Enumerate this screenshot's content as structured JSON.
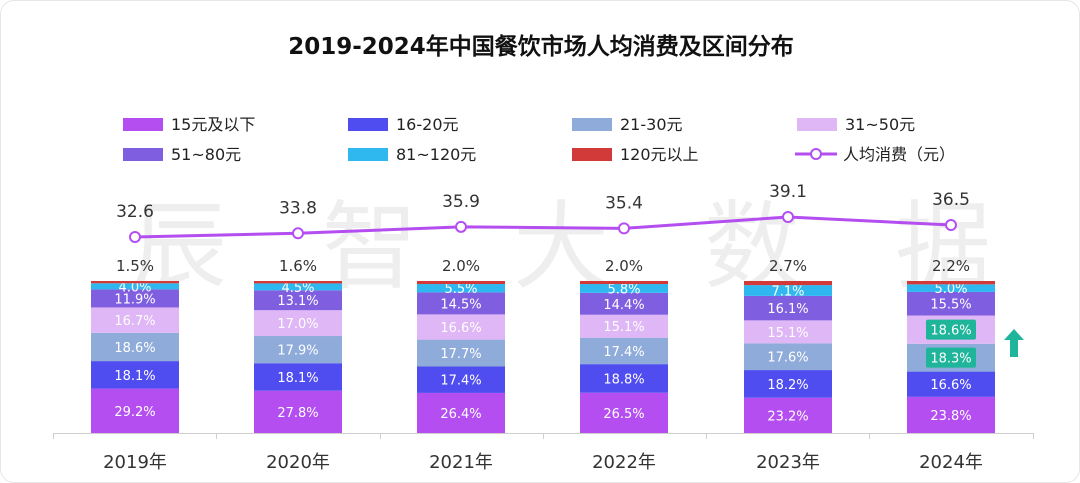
{
  "chart_data": {
    "type": "bar",
    "stacked": true,
    "title": "2019-2024年中国餐饮市场人均消费及区间分布",
    "categories": [
      "2019年",
      "2020年",
      "2021年",
      "2022年",
      "2023年",
      "2024年"
    ],
    "series": [
      {
        "name": "15元及以下",
        "color": "#b44ef0",
        "values": [
          29.2,
          27.8,
          26.4,
          26.5,
          23.2,
          23.8
        ],
        "labels": [
          "29.2%",
          "27.8%",
          "26.4%",
          "26.5%",
          "23.2%",
          "23.8%"
        ]
      },
      {
        "name": "16-20元",
        "color": "#4f4cf0",
        "values": [
          18.1,
          18.1,
          17.4,
          18.8,
          18.2,
          16.6
        ],
        "labels": [
          "18.1%",
          "18.1%",
          "17.4%",
          "18.8%",
          "18.2%",
          "16.6%"
        ]
      },
      {
        "name": "21-30元",
        "color": "#8fabda",
        "values": [
          18.6,
          17.9,
          17.7,
          17.4,
          17.6,
          18.3
        ],
        "labels": [
          "18.6%",
          "17.9%",
          "17.7%",
          "17.4%",
          "17.6%",
          "18.3%"
        ]
      },
      {
        "name": "31~50元",
        "color": "#dfb6f6",
        "values": [
          16.7,
          17.0,
          16.6,
          15.1,
          15.1,
          18.6
        ],
        "labels": [
          "16.7%",
          "17.0%",
          "16.6%",
          "15.1%",
          "15.1%",
          "18.6%"
        ]
      },
      {
        "name": "51~80元",
        "color": "#7f5ee0",
        "values": [
          11.9,
          13.1,
          14.5,
          14.4,
          16.1,
          15.5
        ],
        "labels": [
          "11.9%",
          "13.1%",
          "14.5%",
          "14.4%",
          "16.1%",
          "15.5%"
        ]
      },
      {
        "name": "81~120元",
        "color": "#2fb8ef",
        "values": [
          4.0,
          4.5,
          5.5,
          5.8,
          7.1,
          5.0
        ],
        "labels": [
          "4.0%",
          "4.5%",
          "5.5%",
          "5.8%",
          "7.1%",
          "5.0%"
        ]
      },
      {
        "name": "120元以上",
        "color": "#d23a3a",
        "values": [
          1.5,
          1.6,
          2.0,
          2.0,
          2.7,
          2.2
        ],
        "labels": [
          "1.5%",
          "1.6%",
          "2.0%",
          "2.0%",
          "2.7%",
          "2.2%"
        ]
      }
    ],
    "line": {
      "name": "人均消费（元）",
      "color": "#b44ef0",
      "values": [
        32.6,
        33.8,
        35.9,
        35.4,
        39.1,
        36.5
      ],
      "labels": [
        "32.6",
        "33.8",
        "35.9",
        "35.4",
        "39.1",
        "36.5"
      ]
    },
    "highlight": {
      "category": "2024年",
      "series": [
        "31~50元",
        "21-30元"
      ],
      "color": "#1fb59a"
    },
    "arrow": {
      "direction": "up",
      "color": "#1fb59a"
    },
    "watermark": "辰智大数据",
    "legend_position": "top"
  }
}
